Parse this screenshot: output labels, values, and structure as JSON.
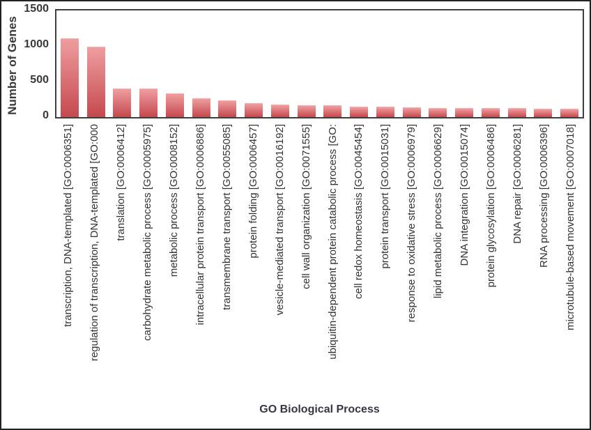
{
  "chart_data": {
    "type": "bar",
    "title": "",
    "xlabel": "GO Biological Process",
    "ylabel": "Number of Genes",
    "ylim": [
      0,
      1500
    ],
    "yticks": [
      0,
      500,
      1000,
      1500
    ],
    "grid": false,
    "legend_position": "none",
    "bar_color_top": "#ef9d9f",
    "bar_color_bottom": "#c5494e",
    "plot_border_color": "#3f3f3f",
    "categories": [
      "transcription, DNA-templated [GO:0006351]",
      "regulation of transcription, DNA-templated [GO:000",
      "translation [GO:0006412]",
      "carbohydrate metabolic process [GO:0005975]",
      "metabolic process [GO:0008152]",
      "intracellular protein transport [GO:0006886]",
      "transmembrane transport [GO:0055085]",
      "protein folding [GO:0006457]",
      "vesicle-mediated transport [GO:0016192]",
      "cell wall organization [GO:0071555]",
      "ubiquitin-dependent protein catabolic process [GO:",
      "cell redox homeostasis [GO:0045454]",
      "protein transport [GO:0015031]",
      "response to oxidative stress [GO:0006979]",
      "lipid metabolic process [GO:0006629]",
      "DNA integration [GO:0015074]",
      "protein glycosylation [GO:0006486]",
      "DNA repair [GO:0006281]",
      "RNA processing [GO:0006396]",
      "microtubule-based movement [GO:0007018]"
    ],
    "values": [
      1100,
      980,
      395,
      395,
      320,
      250,
      225,
      185,
      170,
      160,
      155,
      140,
      135,
      125,
      120,
      120,
      120,
      115,
      105,
      105
    ]
  }
}
